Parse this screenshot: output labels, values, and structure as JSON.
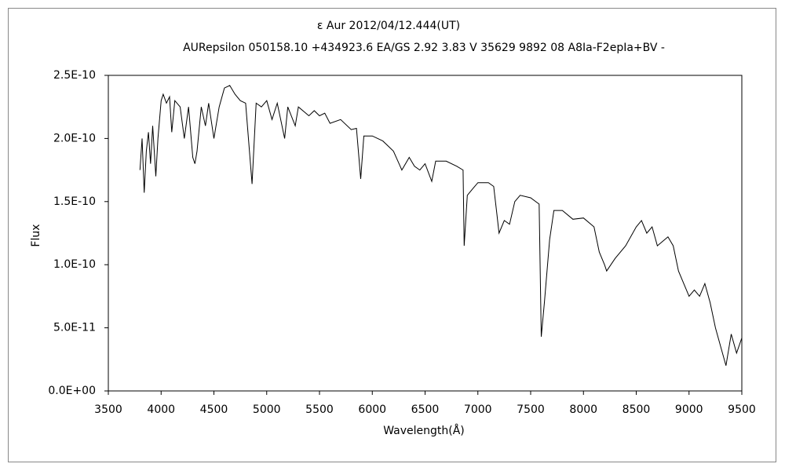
{
  "chart_data": {
    "type": "line",
    "title": "ε  Aur    2012/04/12.444(UT)",
    "subtitle": "AURepsilon 050158.10 +434923.6 EA/GS 2.92 3.83 V 35629 9892 08 A8Ia-F2epIa+BV -",
    "x_label": "Wavelength(Å)",
    "y_label": "Flux",
    "color": "#000000",
    "x": [
      3800,
      3820,
      3840,
      3860,
      3880,
      3900,
      3920,
      3950,
      3970,
      4000,
      4020,
      4050,
      4080,
      4101,
      4130,
      4180,
      4220,
      4260,
      4300,
      4320,
      4340,
      4380,
      4420,
      4450,
      4500,
      4550,
      4600,
      4650,
      4700,
      4750,
      4800,
      4861,
      4900,
      4950,
      5000,
      5050,
      5100,
      5170,
      5200,
      5270,
      5300,
      5400,
      5450,
      5500,
      5550,
      5600,
      5700,
      5800,
      5850,
      5890,
      5920,
      6000,
      6100,
      6200,
      6280,
      6350,
      6400,
      6450,
      6500,
      6563,
      6600,
      6700,
      6800,
      6860,
      6870,
      6900,
      6950,
      7000,
      7100,
      7150,
      7180,
      7200,
      7250,
      7300,
      7350,
      7400,
      7500,
      7580,
      7600,
      7630,
      7680,
      7720,
      7800,
      7900,
      8000,
      8100,
      8150,
      8200,
      8220,
      8300,
      8400,
      8500,
      8550,
      8600,
      8650,
      8700,
      8800,
      8850,
      8900,
      9000,
      9050,
      9100,
      9150,
      9200,
      9250,
      9300,
      9350,
      9400,
      9450,
      9500
    ],
    "values": [
      1.75e-10,
      2e-10,
      1.57e-10,
      1.9e-10,
      2.05e-10,
      1.8e-10,
      2.1e-10,
      1.7e-10,
      2e-10,
      2.3e-10,
      2.35e-10,
      2.28e-10,
      2.33e-10,
      2.05e-10,
      2.3e-10,
      2.25e-10,
      2e-10,
      2.25e-10,
      1.85e-10,
      1.8e-10,
      1.9e-10,
      2.25e-10,
      2.1e-10,
      2.28e-10,
      2e-10,
      2.25e-10,
      2.4e-10,
      2.42e-10,
      2.35e-10,
      2.3e-10,
      2.28e-10,
      1.64e-10,
      2.28e-10,
      2.25e-10,
      2.3e-10,
      2.15e-10,
      2.28e-10,
      2e-10,
      2.25e-10,
      2.1e-10,
      2.25e-10,
      2.18e-10,
      2.22e-10,
      2.18e-10,
      2.2e-10,
      2.12e-10,
      2.15e-10,
      2.07e-10,
      2.08e-10,
      1.68e-10,
      2.02e-10,
      2.02e-10,
      1.98e-10,
      1.9e-10,
      1.75e-10,
      1.85e-10,
      1.78e-10,
      1.75e-10,
      1.8e-10,
      1.66e-10,
      1.82e-10,
      1.82e-10,
      1.78e-10,
      1.75e-10,
      1.15e-10,
      1.55e-10,
      1.6e-10,
      1.65e-10,
      1.65e-10,
      1.62e-10,
      1.4e-10,
      1.25e-10,
      1.35e-10,
      1.32e-10,
      1.5e-10,
      1.55e-10,
      1.53e-10,
      1.48e-10,
      4.3e-11,
      7e-11,
      1.2e-10,
      1.43e-10,
      1.43e-10,
      1.36e-10,
      1.37e-10,
      1.3e-10,
      1.1e-10,
      1e-10,
      9.5e-11,
      1.05e-10,
      1.15e-10,
      1.3e-10,
      1.35e-10,
      1.25e-10,
      1.3e-10,
      1.15e-10,
      1.22e-10,
      1.15e-10,
      9.5e-11,
      7.5e-11,
      8e-11,
      7.5e-11,
      8.5e-11,
      7e-11,
      5e-11,
      3.5e-11,
      2e-11,
      4.5e-11,
      3e-11,
      4.2e-11
    ],
    "xlim": [
      3500,
      9500
    ],
    "xticks": [
      3500,
      4000,
      4500,
      5000,
      5500,
      6000,
      6500,
      7000,
      7500,
      8000,
      8500,
      9000,
      9500
    ],
    "ylim": [
      0,
      2.5e-10
    ],
    "yticks": [
      {
        "value": 0,
        "label": "0.0E+00"
      },
      {
        "value": 5e-11,
        "label": "5.0E-11"
      },
      {
        "value": 1e-10,
        "label": "1.0E-10"
      },
      {
        "value": 1.5e-10,
        "label": "1.5E-10"
      },
      {
        "value": 2e-10,
        "label": "2.0E-10"
      },
      {
        "value": 2.5e-10,
        "label": "2.5E-10"
      }
    ]
  }
}
